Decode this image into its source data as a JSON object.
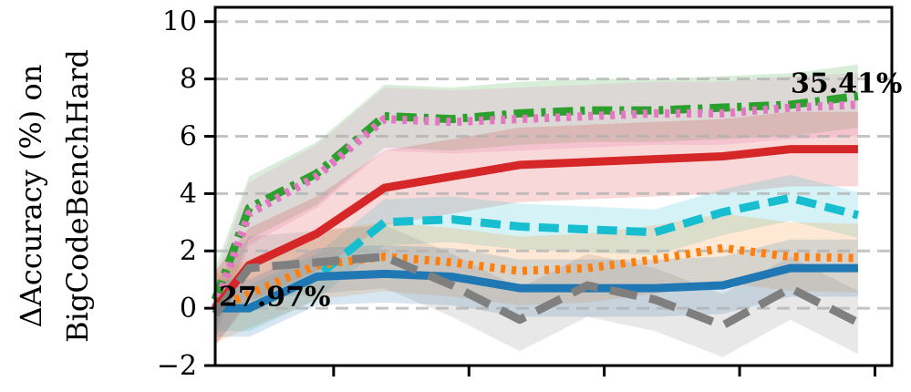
{
  "chart_data": {
    "type": "line",
    "ylabel_line1": "ΔAccuracy (%) on",
    "ylabel_line2": "BigCodeBenchHard",
    "ylim": [
      -2,
      10.5
    ],
    "y_ticks": [
      "−2",
      "0",
      "2",
      "4",
      "6",
      "8",
      "10"
    ],
    "y_tick_values": [
      -2,
      0,
      2,
      4,
      6,
      8,
      10
    ],
    "x": [
      0,
      0.5,
      1.5,
      2.5,
      3.5,
      4.5,
      5.5,
      6.5,
      7.5,
      8.5,
      9.5
    ],
    "xlim": [
      0,
      10
    ],
    "x_tick_positions": [
      1.75,
      3.75,
      5.75,
      7.75,
      9.75
    ],
    "grid": "y-dashed",
    "series": [
      {
        "color": "#2ca02c",
        "style": "dashdot",
        "values": [
          0.3,
          3.5,
          4.7,
          6.7,
          6.6,
          6.8,
          6.9,
          6.9,
          7.0,
          7.1,
          7.4
        ],
        "band": 1.1
      },
      {
        "color": "#e377c2",
        "style": "dotted",
        "values": [
          0.0,
          3.3,
          4.6,
          6.6,
          6.5,
          6.6,
          6.7,
          6.8,
          6.8,
          7.0,
          7.1
        ],
        "band": 1.1
      },
      {
        "color": "#d62728",
        "style": "solid",
        "values": [
          0.0,
          1.5,
          2.6,
          4.2,
          4.6,
          5.0,
          5.1,
          5.2,
          5.3,
          5.55,
          5.55
        ],
        "band": 1.3
      },
      {
        "color": "#17becf",
        "style": "dashed",
        "values": [
          0.0,
          0.0,
          1.1,
          3.0,
          3.1,
          2.85,
          2.75,
          2.65,
          3.35,
          3.85,
          3.25
        ],
        "band": 0.8
      },
      {
        "color": "#ff7f0e",
        "style": "dotted",
        "values": [
          0.0,
          0.5,
          1.5,
          1.8,
          1.6,
          1.3,
          1.4,
          1.7,
          2.1,
          1.8,
          1.75
        ],
        "band": 1.2
      },
      {
        "color": "#1f77b4",
        "style": "solid",
        "values": [
          0.0,
          0.0,
          1.1,
          1.2,
          1.1,
          0.7,
          0.7,
          0.7,
          0.8,
          1.4,
          1.4
        ],
        "band": 1.0
      },
      {
        "color": "#7f7f7f",
        "style": "longdash",
        "values": [
          -0.2,
          1.4,
          1.6,
          1.8,
          0.8,
          -0.4,
          0.8,
          0.3,
          -0.6,
          0.7,
          -0.5
        ],
        "band": 1.1
      }
    ],
    "annotations": [
      {
        "text": "27.97%",
        "x": 0.0,
        "y": 0.4
      },
      {
        "text": "35.41%",
        "x": 8.45,
        "y": 7.85
      }
    ]
  }
}
